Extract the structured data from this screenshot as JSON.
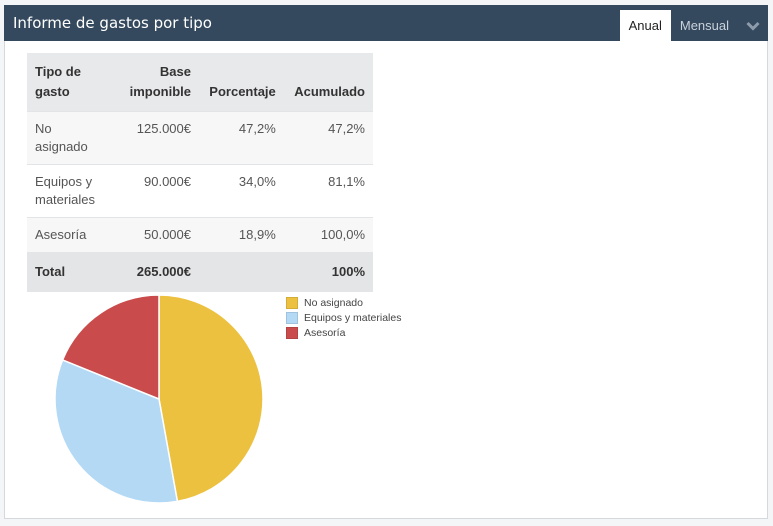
{
  "header": {
    "title": "Informe de gastos por tipo",
    "tabs": [
      {
        "label": "Anual",
        "active": true
      },
      {
        "label": "Mensual",
        "active": false
      }
    ],
    "collapse_icon": "chevron-down-icon"
  },
  "table": {
    "columns": [
      "Tipo de gasto",
      "Base imponible",
      "Porcentaje",
      "Acumulado"
    ],
    "rows": [
      {
        "tipo": "No asignado",
        "base": "125.000€",
        "porcentaje": "47,2%",
        "acumulado": "47,2%"
      },
      {
        "tipo": "Equipos y materiales",
        "base": "90.000€",
        "porcentaje": "34,0%",
        "acumulado": "81,1%"
      },
      {
        "tipo": "Asesoría",
        "base": "50.000€",
        "porcentaje": "18,9%",
        "acumulado": "100,0%"
      }
    ],
    "total": {
      "label": "Total",
      "base": "265.000€",
      "porcentaje": "",
      "acumulado": "100%"
    }
  },
  "legend": [
    {
      "label": "No asignado",
      "color": "#ecc13f"
    },
    {
      "label": "Equipos y materiales",
      "color": "#b3d9f5"
    },
    {
      "label": "Asesoría",
      "color": "#c94b4b"
    }
  ],
  "chart_data": {
    "type": "pie",
    "title": "",
    "categories": [
      "No asignado",
      "Equipos y materiales",
      "Asesoría"
    ],
    "values": [
      125000,
      90000,
      50000
    ],
    "percentages": [
      47.2,
      34.0,
      18.9
    ],
    "colors": [
      "#ecc13f",
      "#b3d9f5",
      "#c94b4b"
    ],
    "legend_position": "right"
  }
}
